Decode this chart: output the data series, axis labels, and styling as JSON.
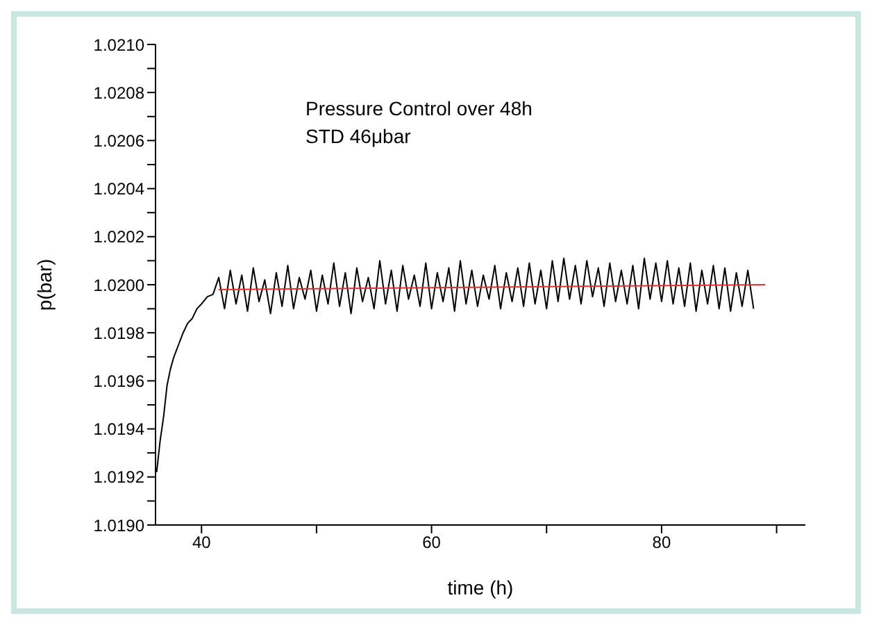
{
  "chart_data": {
    "type": "line",
    "xlabel": "time (h)",
    "ylabel": "p(bar)",
    "annotations": [
      "Pressure Control over 48h",
      "STD 46μbar"
    ],
    "xlim": [
      36,
      92.5
    ],
    "xticks": [
      40,
      {
        "value": 50,
        "label": null
      },
      60,
      {
        "value": 70,
        "label": null
      },
      80,
      {
        "value": 90,
        "label": null
      }
    ],
    "ylim": [
      1.019,
      1.021
    ],
    "yticks": [
      {
        "value": 1.019,
        "label": "1.0190"
      },
      {
        "value": 1.0191,
        "label": null
      },
      {
        "value": 1.0192,
        "label": "1.0192"
      },
      {
        "value": 1.0193,
        "label": null
      },
      {
        "value": 1.0194,
        "label": "1.0194"
      },
      {
        "value": 1.0195,
        "label": null
      },
      {
        "value": 1.0196,
        "label": "1.0196"
      },
      {
        "value": 1.0197,
        "label": null
      },
      {
        "value": 1.0198,
        "label": "1.0198"
      },
      {
        "value": 1.0199,
        "label": null
      },
      {
        "value": 1.02,
        "label": "1.0200"
      },
      {
        "value": 1.0201,
        "label": null
      },
      {
        "value": 1.0202,
        "label": "1.0202"
      },
      {
        "value": 1.0203,
        "label": null
      },
      {
        "value": 1.0204,
        "label": "1.0204"
      },
      {
        "value": 1.0205,
        "label": null
      },
      {
        "value": 1.0206,
        "label": "1.0206"
      },
      {
        "value": 1.0207,
        "label": null
      },
      {
        "value": 1.0208,
        "label": "1.0208"
      },
      {
        "value": 1.0209,
        "label": null
      },
      {
        "value": 1.021,
        "label": "1.0210"
      }
    ],
    "series": [
      {
        "color": "#000000",
        "x": [
          36.1,
          36.4,
          36.7,
          37.0,
          37.3,
          37.6,
          38.0,
          38.4,
          38.8,
          39.2,
          39.6,
          40.0,
          40.5,
          41.0,
          41.5,
          42.0,
          42.5,
          43.0,
          43.5,
          44.0,
          44.5,
          45.0,
          45.5,
          46.0,
          46.5,
          47.0,
          47.5,
          48.0,
          48.5,
          49.0,
          49.5,
          50.0,
          50.5,
          51.0,
          51.5,
          52.0,
          52.5,
          53.0,
          53.5,
          54.0,
          54.5,
          55.0,
          55.5,
          56.0,
          56.5,
          57.0,
          57.5,
          58.0,
          58.5,
          59.0,
          59.5,
          60.0,
          60.5,
          61.0,
          61.5,
          62.0,
          62.5,
          63.0,
          63.5,
          64.0,
          64.5,
          65.0,
          65.5,
          66.0,
          66.5,
          67.0,
          67.5,
          68.0,
          68.5,
          69.0,
          69.5,
          70.0,
          70.5,
          71.0,
          71.5,
          72.0,
          72.5,
          73.0,
          73.5,
          74.0,
          74.5,
          75.0,
          75.5,
          76.0,
          76.5,
          77.0,
          77.5,
          78.0,
          78.5,
          79.0,
          79.5,
          80.0,
          80.5,
          81.0,
          81.5,
          82.0,
          82.5,
          83.0,
          83.5,
          84.0,
          84.5,
          85.0,
          85.5,
          86.0,
          86.5,
          87.0,
          87.5,
          88.0
        ],
        "values": [
          1.01922,
          1.01935,
          1.01945,
          1.01958,
          1.01965,
          1.0197,
          1.01975,
          1.0198,
          1.01984,
          1.01986,
          1.0199,
          1.01992,
          1.01995,
          1.01996,
          1.02003,
          1.0199,
          1.02006,
          1.01992,
          1.02004,
          1.01989,
          1.02007,
          1.01993,
          1.02002,
          1.01988,
          1.02005,
          1.01991,
          1.02008,
          1.0199,
          1.02003,
          1.01994,
          1.02006,
          1.01989,
          1.02004,
          1.01992,
          1.02009,
          1.01991,
          1.02005,
          1.01988,
          1.02007,
          1.01993,
          1.02003,
          1.0199,
          1.0201,
          1.01992,
          1.02006,
          1.01989,
          1.02008,
          1.01994,
          1.02004,
          1.01991,
          1.02009,
          1.0199,
          1.02005,
          1.01993,
          1.02007,
          1.01989,
          1.0201,
          1.01992,
          1.02006,
          1.01991,
          1.02004,
          1.01994,
          1.02008,
          1.0199,
          1.02005,
          1.01993,
          1.02007,
          1.01991,
          1.02009,
          1.01992,
          1.02006,
          1.0199,
          1.0201,
          1.01993,
          1.02011,
          1.01994,
          1.02008,
          1.01992,
          1.0201,
          1.01995,
          1.02007,
          1.01991,
          1.02009,
          1.01993,
          1.02006,
          1.01992,
          1.02008,
          1.0199,
          1.02011,
          1.01994,
          1.02009,
          1.01993,
          1.0201,
          1.01992,
          1.02007,
          1.01991,
          1.02009,
          1.01989,
          1.02006,
          1.01992,
          1.02008,
          1.0199,
          1.02007,
          1.01989,
          1.02005,
          1.01991,
          1.02006,
          1.0199
        ]
      },
      {
        "color": "#e03030",
        "x": [
          41.5,
          89
        ],
        "values": [
          1.01998,
          1.02
        ]
      }
    ]
  }
}
